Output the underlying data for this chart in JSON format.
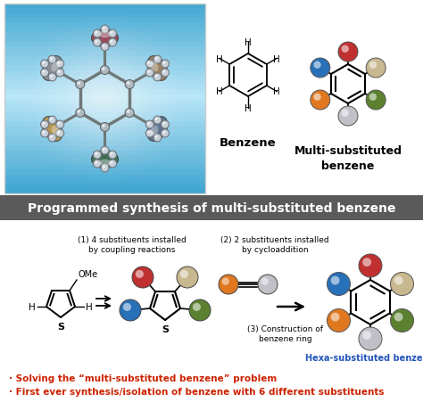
{
  "banner_text": "Programmed synthesis of multi-substituted benzene",
  "banner_color": "#5a5a5a",
  "banner_text_color": "#ffffff",
  "bg_color": "#ffffff",
  "top_blue_color": "#4ab8e0",
  "top_blue_light": "#caeaf8",
  "label_benzene": "Benzene",
  "label_multi": "Multi-substituted\nbenzene",
  "label_hexa": "Hexa-substituted benzene",
  "label_hexa_color": "#2255bb",
  "step1_text": "(1) 4 substituents installed\nby coupling reactions",
  "step2_text": "(2) 2 substituents installed\nby cycloaddition",
  "step3_text": "(3) Construction of\nbenzene ring",
  "bullet1": "· Solving the “multi-substituted benzene” problem",
  "bullet2": "· First ever synthesis/isolation of benzene with 6 different substituents",
  "bullet_color": "#cc2200",
  "mol3d_sub_colors": [
    "#9a4050",
    "#9a7850",
    "#5a6888",
    "#3a6848",
    "#b89040",
    "#888890"
  ],
  "sub_colors": {
    "red": "#c03030",
    "tan": "#c8b890",
    "blue": "#2870b8",
    "green": "#5a8030",
    "orange": "#e07820",
    "gray": "#aaaaaa",
    "silver": "#c0c0c8"
  },
  "hexa_colors_order": [
    "red",
    "tan",
    "green",
    "silver",
    "orange",
    "blue"
  ],
  "multi_colors_order": [
    "red",
    "tan",
    "green",
    "silver",
    "orange",
    "blue"
  ]
}
